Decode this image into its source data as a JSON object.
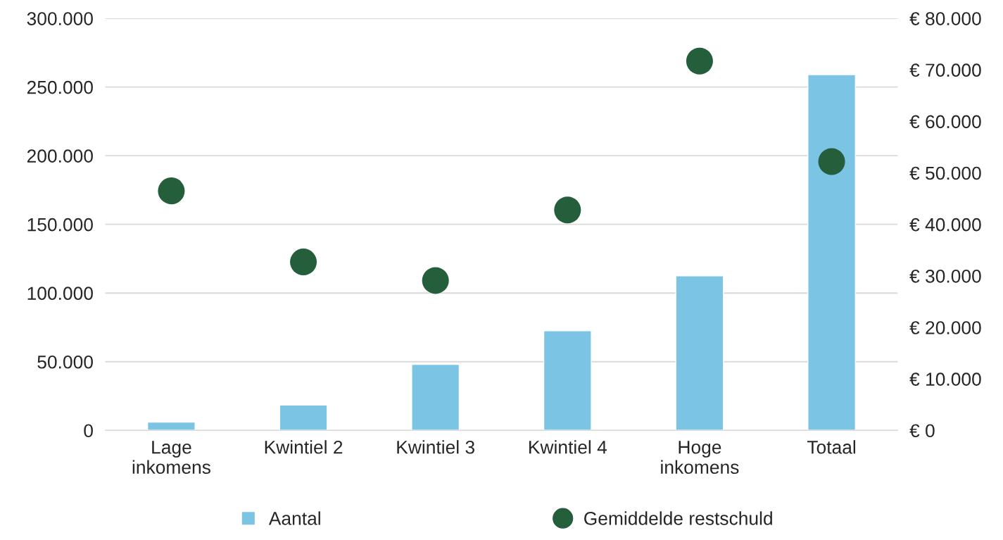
{
  "chart_data": {
    "type": "bar",
    "categories": [
      "Lage\ninkomens",
      "Kwintiel 2",
      "Kwintiel 3",
      "Kwintiel 4",
      "Hoge\ninkomens",
      "Totaal"
    ],
    "series": [
      {
        "name": "Aantal",
        "color": "#7bc4e4",
        "values": [
          6000,
          18500,
          48000,
          72500,
          112500,
          259000
        ]
      },
      {
        "name": "Gemiddelde restschuld",
        "type": "scatter",
        "axis": "y2",
        "marker": "circle",
        "color": "#245e3a",
        "values": [
          46500,
          32700,
          29100,
          42800,
          71700,
          52200
        ]
      }
    ],
    "ylim": [
      0,
      300000
    ],
    "yticks": [
      {
        "value": 0,
        "label": "0"
      },
      {
        "value": 50000,
        "label": "50.000"
      },
      {
        "value": 100000,
        "label": "100.000"
      },
      {
        "value": 150000,
        "label": "150.000"
      },
      {
        "value": 200000,
        "label": "200.000"
      },
      {
        "value": 250000,
        "label": "250.000"
      },
      {
        "value": 300000,
        "label": "300.000"
      }
    ],
    "y2lim": [
      0,
      80000
    ],
    "y2ticks": [
      {
        "value": 0,
        "label": "€ 0"
      },
      {
        "value": 10000,
        "label": "€ 10.000"
      },
      {
        "value": 20000,
        "label": "€ 20.000"
      },
      {
        "value": 30000,
        "label": "€ 30.000"
      },
      {
        "value": 40000,
        "label": "€ 40.000"
      },
      {
        "value": 50000,
        "label": "€ 50.000"
      },
      {
        "value": 60000,
        "label": "€ 60.000"
      },
      {
        "value": 70000,
        "label": "€ 70.000"
      },
      {
        "value": 80000,
        "label": "€ 80.000"
      }
    ],
    "grid": "y",
    "legend": "bottom"
  }
}
